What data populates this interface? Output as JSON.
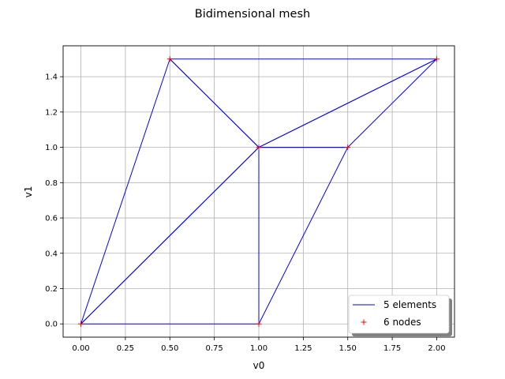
{
  "chart_data": {
    "type": "line",
    "title": "Bidimensional mesh",
    "xlabel": "v0",
    "ylabel": "v1",
    "xlim": [
      -0.1,
      2.1
    ],
    "ylim": [
      -0.075,
      1.575
    ],
    "xticks": [
      0.0,
      0.25,
      0.5,
      0.75,
      1.0,
      1.25,
      1.5,
      1.75,
      2.0
    ],
    "xtick_labels": [
      "0.00",
      "0.25",
      "0.50",
      "0.75",
      "1.00",
      "1.25",
      "1.50",
      "1.75",
      "2.00"
    ],
    "yticks": [
      0.0,
      0.2,
      0.4,
      0.6,
      0.8,
      1.0,
      1.2,
      1.4
    ],
    "ytick_labels": [
      "0.0",
      "0.2",
      "0.4",
      "0.6",
      "0.8",
      "1.0",
      "1.2",
      "1.4"
    ],
    "grid": true,
    "legend_position": "bottom-right",
    "nodes": [
      [
        0.0,
        0.0
      ],
      [
        1.0,
        0.0
      ],
      [
        1.0,
        1.0
      ],
      [
        1.5,
        1.0
      ],
      [
        0.5,
        1.5
      ],
      [
        2.0,
        1.5
      ]
    ],
    "elements": [
      [
        0,
        1,
        2
      ],
      [
        1,
        3,
        2
      ],
      [
        2,
        3,
        5
      ],
      [
        2,
        5,
        4
      ],
      [
        0,
        2,
        4
      ]
    ],
    "series": [
      {
        "name": "5 elements",
        "color": "#0000ff",
        "marker": "line"
      },
      {
        "name": "6 nodes",
        "color": "#ff0000",
        "marker": "+"
      }
    ]
  }
}
